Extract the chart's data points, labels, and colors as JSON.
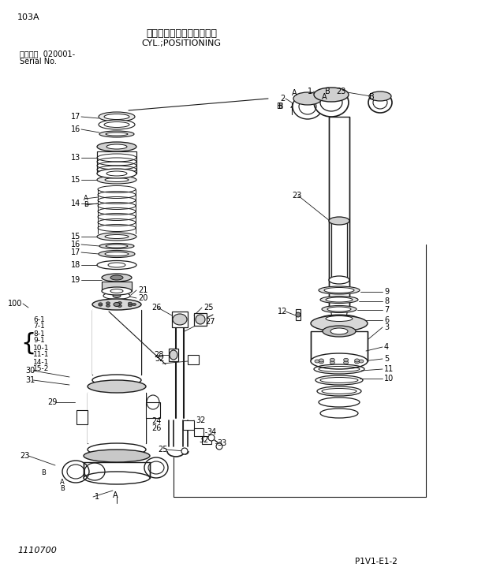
{
  "title_jp": "シリンダ；ポジショニング",
  "title_en": "CYL.;POSITIONING",
  "page_id": "103A",
  "serial_label": "適用号機  020001-",
  "serial_no": "Serial No.",
  "bottom_left": "1110700",
  "bottom_right": "P1V1-E1-2",
  "bg_color": "#ffffff",
  "line_color": "#1a1a1a",
  "fig_width": 6.2,
  "fig_height": 7.24,
  "dpi": 100
}
